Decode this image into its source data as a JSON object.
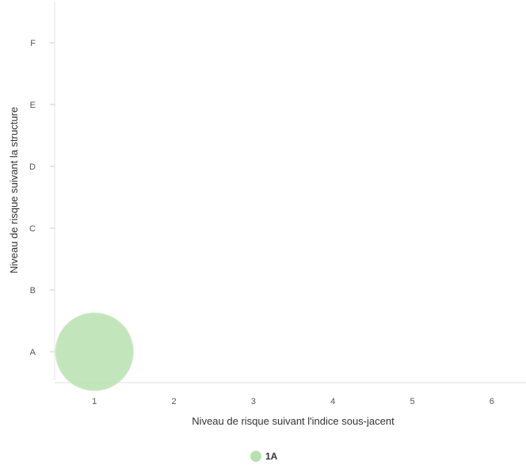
{
  "chart_data": {
    "type": "scatter",
    "title": "",
    "xlabel": "Niveau de risque suivant l'indice sous-jacent",
    "ylabel": "Niveau de risque suivant la structure",
    "x_ticks": [
      "1",
      "2",
      "3",
      "4",
      "5",
      "6"
    ],
    "y_ticks": [
      "A",
      "B",
      "C",
      "D",
      "E",
      "F"
    ],
    "xlim": [
      0.5,
      6.5
    ],
    "ylim": [
      0.5,
      6.5
    ],
    "grid": false,
    "legend_position": "bottom-center",
    "series": [
      {
        "name": "1A",
        "color": "#b9e0b0",
        "points": [
          {
            "x": 1,
            "y": "A"
          }
        ]
      }
    ]
  }
}
